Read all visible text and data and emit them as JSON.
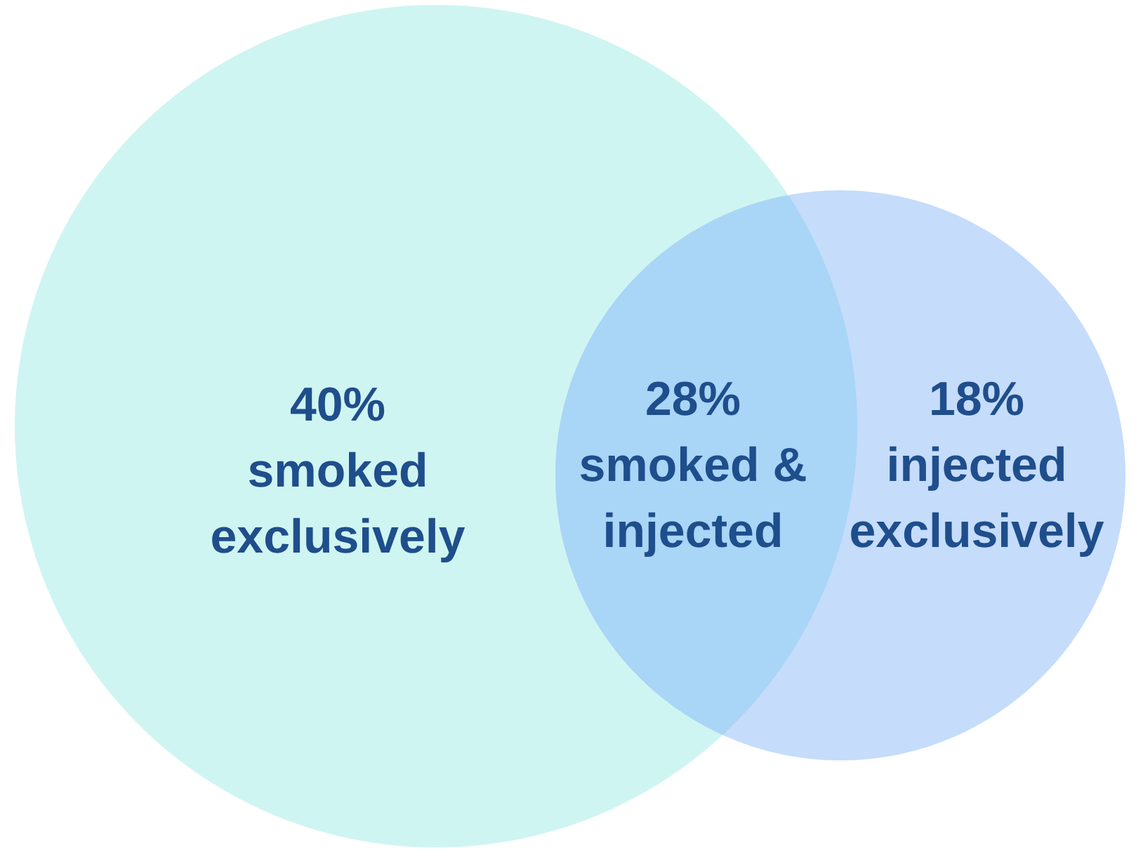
{
  "chart_data": {
    "type": "other",
    "categories": [
      "smoked\nexclusively",
      "smoked &\ninjected",
      "injected\nexclusively"
    ],
    "values": [
      40,
      28,
      18
    ],
    "value_labels": [
      "40%",
      "28%",
      "18%"
    ],
    "colors": [
      "#cff5f2",
      "#a9d5f6",
      "#c5dcfb"
    ]
  }
}
